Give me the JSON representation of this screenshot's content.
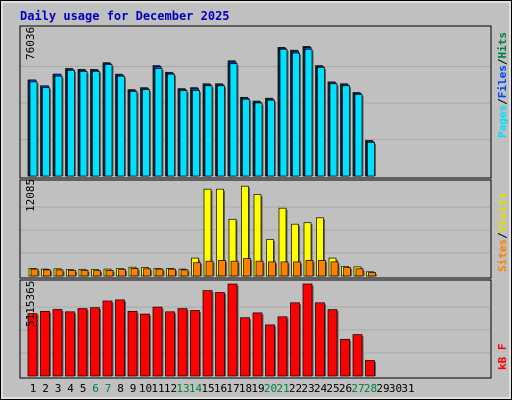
{
  "title": "Daily usage for December 2025",
  "colors": {
    "background": "#c0c0c0",
    "title": "#0000c0",
    "hits": "#008040",
    "files": "#0040ff",
    "pages": "#00e0ff",
    "visits": "#ffff00",
    "sites": "#ff8000",
    "kbytes": "#ff0000",
    "weekend_label": "#008040",
    "weekday_label": "#000000"
  },
  "chart_data": [
    {
      "type": "bar",
      "panel": "hits-files-pages",
      "ymax_label": "76036",
      "ylim": [
        0,
        76036
      ],
      "legend": [
        "Pages",
        "/",
        "Files",
        "/",
        "Hits"
      ],
      "x": [
        1,
        2,
        3,
        4,
        5,
        6,
        7,
        8,
        9,
        10,
        11,
        12,
        13,
        14,
        15,
        16,
        17,
        18,
        19,
        20,
        21,
        22,
        23,
        24,
        25,
        26,
        27,
        28,
        29,
        30,
        31
      ],
      "series": [
        {
          "name": "Hits",
          "values": [
            50000,
            47000,
            53000,
            56000,
            55500,
            55500,
            59000,
            53000,
            45000,
            46000,
            57500,
            54000,
            45500,
            46000,
            48000,
            48000,
            60000,
            41000,
            39000,
            40500,
            67000,
            65500,
            67500,
            57500,
            49000,
            48000,
            43500,
            18500,
            0,
            0,
            0
          ]
        },
        {
          "name": "Files",
          "values": [
            50000,
            47000,
            53000,
            55500,
            55000,
            55000,
            58500,
            52500,
            44500,
            45500,
            57000,
            53500,
            45000,
            45500,
            47500,
            47500,
            59500,
            40500,
            38500,
            40000,
            66500,
            65000,
            67000,
            57000,
            48500,
            47500,
            43000,
            18000,
            0,
            0,
            0
          ]
        },
        {
          "name": "Pages",
          "values": [
            49000,
            46000,
            52000,
            55000,
            54500,
            54500,
            58000,
            52000,
            44000,
            45000,
            56000,
            53000,
            44500,
            44500,
            47000,
            47000,
            58500,
            40000,
            38000,
            39500,
            66000,
            64000,
            66000,
            56500,
            48000,
            47000,
            42500,
            17500,
            0,
            0,
            0
          ]
        }
      ]
    },
    {
      "type": "bar",
      "panel": "visits-sites",
      "ymax_label": "12085",
      "ylim": [
        0,
        12085
      ],
      "legend": [
        "Sites",
        "/",
        "Visits"
      ],
      "x": [
        1,
        2,
        3,
        4,
        5,
        6,
        7,
        8,
        9,
        10,
        11,
        12,
        13,
        14,
        15,
        16,
        17,
        18,
        19,
        20,
        21,
        22,
        23,
        24,
        25,
        26,
        27,
        28,
        29,
        30,
        31
      ],
      "series": [
        {
          "name": "Visits",
          "values": [
            1000,
            900,
            950,
            850,
            880,
            850,
            900,
            1000,
            1150,
            1100,
            1000,
            1000,
            900,
            2350,
            11400,
            11400,
            7450,
            11800,
            10700,
            4800,
            8900,
            6800,
            7000,
            7650,
            2350,
            1250,
            1200,
            550,
            0,
            0,
            0
          ]
        },
        {
          "name": "Sites",
          "values": [
            900,
            800,
            800,
            750,
            750,
            700,
            750,
            850,
            1000,
            950,
            900,
            900,
            800,
            1750,
            1950,
            2050,
            1950,
            2300,
            1950,
            1850,
            1850,
            1850,
            2050,
            2050,
            1850,
            1100,
            950,
            450,
            0,
            0,
            0
          ]
        }
      ]
    },
    {
      "type": "bar",
      "panel": "kbytes",
      "ymax_label": "5115365",
      "ylim": [
        0,
        5115365
      ],
      "legend": [
        "kB F"
      ],
      "x": [
        1,
        2,
        3,
        4,
        5,
        6,
        7,
        8,
        9,
        10,
        11,
        12,
        13,
        14,
        15,
        16,
        17,
        18,
        19,
        20,
        21,
        22,
        23,
        24,
        25,
        26,
        27,
        28,
        29,
        30,
        31
      ],
      "series": [
        {
          "name": "kB F",
          "values": [
            3470000,
            3600000,
            3700000,
            3570000,
            3750000,
            3800000,
            4170000,
            4230000,
            3600000,
            3440000,
            3830000,
            3570000,
            3750000,
            3640000,
            4750000,
            4640000,
            5115000,
            3240000,
            3510000,
            2840000,
            3290000,
            4070000,
            5115000,
            4070000,
            3690000,
            2040000,
            2300000,
            860000,
            0,
            0,
            0
          ]
        }
      ]
    }
  ],
  "x_axis": {
    "days": [
      "1",
      "2",
      "3",
      "4",
      "5",
      "6",
      "7",
      "8",
      "9",
      "10",
      "11",
      "12",
      "13",
      "14",
      "15",
      "16",
      "17",
      "18",
      "19",
      "20",
      "21",
      "22",
      "23",
      "24",
      "25",
      "26",
      "27",
      "28",
      "29",
      "30",
      "31"
    ],
    "weekend_days": [
      6,
      7,
      13,
      14,
      20,
      21,
      27,
      28
    ]
  }
}
